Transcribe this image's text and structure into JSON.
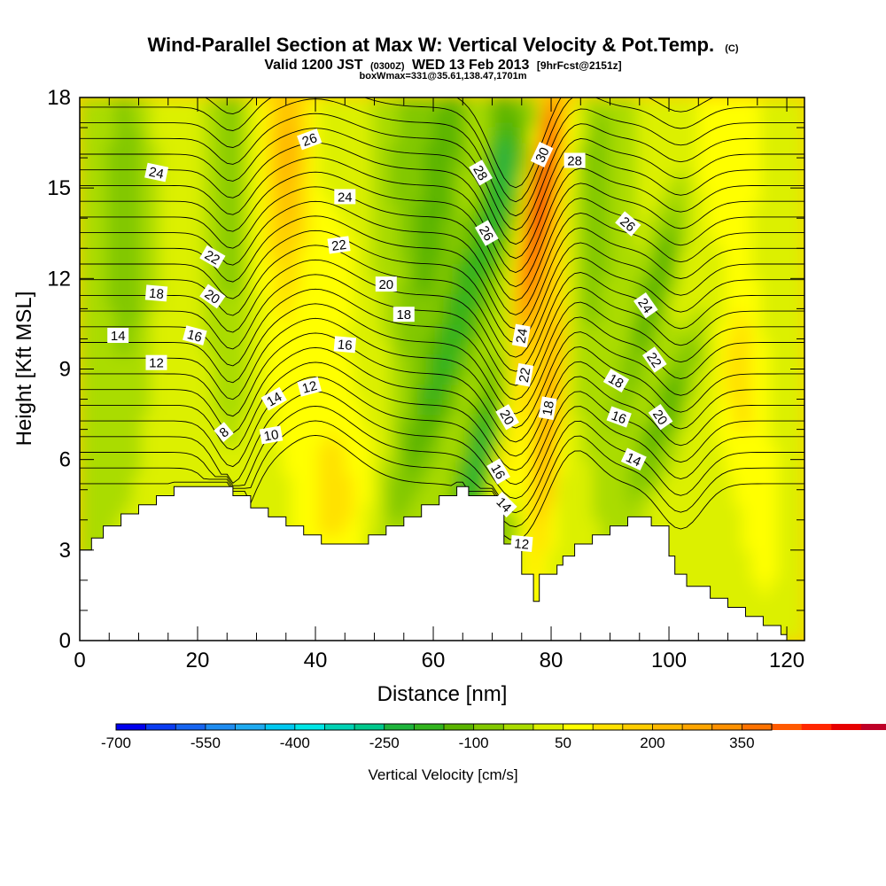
{
  "header": {
    "title_main": "Wind-Parallel Section at Max W: Vertical Velocity & Pot.Temp.",
    "title_copyright": "(C)",
    "valid_prefix": "Valid 1200 JST",
    "valid_zulu": "(0300Z)",
    "valid_date": "WED 13 Feb 2013",
    "valid_fcst": "[9hrFcst@2151z]",
    "box_info": "boxWmax=331@35.61,138.47,1701m"
  },
  "chart_data": {
    "type": "heatmap",
    "title": "Wind-Parallel Section at Max W: Vertical Velocity & Pot.Temp.",
    "xlabel": "Distance [nm]",
    "ylabel": "Height [Kft MSL]",
    "xlim": [
      0,
      123
    ],
    "ylim": [
      0,
      18
    ],
    "x_ticks": [
      "0",
      "20",
      "40",
      "60",
      "80",
      "100",
      "120"
    ],
    "x_tick_values": [
      0,
      20,
      40,
      60,
      80,
      100,
      120
    ],
    "y_ticks": [
      "0",
      "3",
      "6",
      "9",
      "12",
      "15",
      "18"
    ],
    "y_tick_values": [
      0,
      3,
      6,
      9,
      12,
      15,
      18
    ],
    "colorbar": {
      "label": "Vertical Velocity [cm/s]",
      "tick_labels": [
        "-700",
        "-550",
        "-400",
        "-250",
        "-100",
        "50",
        "200",
        "350"
      ],
      "tick_values": [
        -700,
        -550,
        -400,
        -250,
        -100,
        50,
        200,
        350
      ],
      "min": -700,
      "max": 400,
      "step": 50,
      "colors": [
        "#0000ee",
        "#0a3cf2",
        "#1664f0",
        "#1e8cf0",
        "#1eaaf0",
        "#00c8f0",
        "#00e6e6",
        "#00d2b4",
        "#00c88c",
        "#1eb43c",
        "#32b41e",
        "#5ab400",
        "#82c800",
        "#aadc00",
        "#dcf000",
        "#ffff00",
        "#ffe100",
        "#ffcd00",
        "#ffb900",
        "#ffa500",
        "#ff9100",
        "#ff7300",
        "#ff5a00",
        "#ff2800",
        "#e60000",
        "#be0028",
        "#aa0046",
        "#8c0064",
        "#5a0082"
      ]
    },
    "terrain_profile": {
      "x": [
        0,
        2,
        2,
        4,
        4,
        7,
        7,
        10,
        10,
        13,
        13,
        16,
        16,
        26,
        26,
        29,
        29,
        32,
        32,
        35,
        35,
        38,
        38,
        41,
        41,
        49,
        49,
        52,
        52,
        55,
        55,
        58,
        58,
        61,
        61,
        64,
        64,
        66,
        66,
        71,
        71,
        72,
        72,
        75,
        75,
        77,
        77,
        78,
        78,
        81,
        81,
        82,
        82,
        84,
        84,
        87,
        87,
        90,
        90,
        93,
        93,
        97,
        97,
        100,
        100,
        101,
        101,
        103,
        103,
        107,
        107,
        110,
        110,
        113,
        113,
        116,
        116,
        119,
        119,
        120,
        120,
        123
      ],
      "y": [
        3.0,
        3.0,
        3.4,
        3.4,
        3.8,
        3.8,
        4.2,
        4.2,
        4.5,
        4.5,
        4.8,
        4.8,
        5.1,
        5.1,
        4.8,
        4.8,
        4.4,
        4.4,
        4.1,
        4.1,
        3.8,
        3.8,
        3.5,
        3.5,
        3.2,
        3.2,
        3.5,
        3.5,
        3.8,
        3.8,
        4.1,
        4.1,
        4.5,
        4.5,
        4.8,
        4.8,
        5.1,
        5.1,
        4.8,
        4.8,
        4.5,
        4.5,
        3.2,
        3.2,
        2.2,
        2.2,
        1.3,
        1.3,
        2.2,
        2.2,
        2.5,
        2.5,
        2.8,
        2.8,
        3.2,
        3.2,
        3.5,
        3.5,
        3.8,
        3.8,
        4.1,
        4.1,
        3.8,
        3.8,
        2.8,
        2.8,
        2.2,
        2.2,
        1.8,
        1.8,
        1.4,
        1.4,
        1.1,
        1.1,
        0.8,
        0.8,
        0.5,
        0.5,
        0.2,
        0.2,
        0.0,
        0.0
      ]
    },
    "isentropes": {
      "units": "K (offset labels)",
      "levels": [
        6,
        7,
        8,
        9,
        10,
        11,
        12,
        13,
        14,
        15,
        16,
        17,
        18,
        19,
        20,
        21,
        22,
        23,
        24,
        25,
        26,
        27,
        28,
        29,
        30,
        31
      ],
      "labels": [
        {
          "text": "24",
          "x": 13,
          "y": 15.5,
          "angle": 12
        },
        {
          "text": "26",
          "x": 39,
          "y": 16.6,
          "angle": -20
        },
        {
          "text": "24",
          "x": 45,
          "y": 14.7,
          "angle": 0
        },
        {
          "text": "22",
          "x": 22.5,
          "y": 12.7,
          "angle": 30
        },
        {
          "text": "22",
          "x": 44,
          "y": 13.1,
          "angle": -8
        },
        {
          "text": "18",
          "x": 13,
          "y": 11.5,
          "angle": 5
        },
        {
          "text": "20",
          "x": 22.5,
          "y": 11.4,
          "angle": 35
        },
        {
          "text": "20",
          "x": 52,
          "y": 11.8,
          "angle": 0
        },
        {
          "text": "14",
          "x": 6.5,
          "y": 10.1,
          "angle": 0
        },
        {
          "text": "16",
          "x": 19.5,
          "y": 10.1,
          "angle": 15
        },
        {
          "text": "18",
          "x": 55,
          "y": 10.8,
          "angle": 0
        },
        {
          "text": "16",
          "x": 45,
          "y": 9.8,
          "angle": 5
        },
        {
          "text": "12",
          "x": 13,
          "y": 9.2,
          "angle": 0
        },
        {
          "text": "14",
          "x": 33,
          "y": 8.0,
          "angle": -30
        },
        {
          "text": "12",
          "x": 39,
          "y": 8.4,
          "angle": -15
        },
        {
          "text": "8",
          "x": 24.5,
          "y": 6.9,
          "angle": -40
        },
        {
          "text": "10",
          "x": 32.5,
          "y": 6.8,
          "angle": -10
        },
        {
          "text": "28",
          "x": 68,
          "y": 15.5,
          "angle": 60
        },
        {
          "text": "26",
          "x": 69,
          "y": 13.5,
          "angle": 60
        },
        {
          "text": "30",
          "x": 78.5,
          "y": 16.1,
          "angle": -65
        },
        {
          "text": "28",
          "x": 84,
          "y": 15.9,
          "angle": 0
        },
        {
          "text": "26",
          "x": 93,
          "y": 13.8,
          "angle": 40
        },
        {
          "text": "24",
          "x": 75,
          "y": 10.1,
          "angle": -80
        },
        {
          "text": "24",
          "x": 96,
          "y": 11.1,
          "angle": 55
        },
        {
          "text": "22",
          "x": 75.5,
          "y": 8.8,
          "angle": -80
        },
        {
          "text": "22",
          "x": 97.5,
          "y": 9.3,
          "angle": 55
        },
        {
          "text": "18",
          "x": 79.5,
          "y": 7.7,
          "angle": -80
        },
        {
          "text": "18",
          "x": 91,
          "y": 8.6,
          "angle": 30
        },
        {
          "text": "20",
          "x": 72.5,
          "y": 7.4,
          "angle": 60
        },
        {
          "text": "16",
          "x": 91.5,
          "y": 7.4,
          "angle": 20
        },
        {
          "text": "20",
          "x": 98.5,
          "y": 7.4,
          "angle": 55
        },
        {
          "text": "16",
          "x": 71,
          "y": 5.6,
          "angle": 60
        },
        {
          "text": "14",
          "x": 72,
          "y": 4.5,
          "angle": 45
        },
        {
          "text": "14",
          "x": 94,
          "y": 6.0,
          "angle": 25
        },
        {
          "text": "12",
          "x": 75,
          "y": 3.2,
          "angle": 5
        }
      ]
    }
  }
}
